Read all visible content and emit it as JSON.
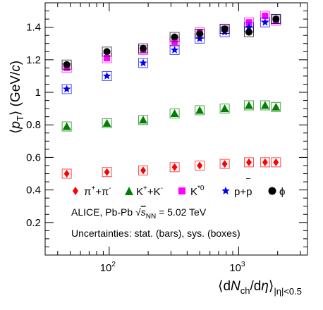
{
  "chart_data": {
    "type": "scatter",
    "ylabel": "⟨pT⟩ (GeV/c)",
    "xlabel": "⟨dNch/dη⟩|η|<0.5",
    "x_scale": "log",
    "xlim": [
      32,
      3400
    ],
    "ylim": [
      0.0,
      1.55
    ],
    "y_ticks": [
      0.2,
      0.4,
      0.6,
      0.8,
      1.0,
      1.2,
      1.4
    ],
    "y_tick_labels": [
      "0.2",
      "0.4",
      "0.6",
      "0.8",
      "1",
      "1.2",
      "1.4"
    ],
    "x_major_ticks": [
      100,
      1000
    ],
    "x_tick_labels": [
      "10",
      "10"
    ],
    "x_tick_exponents": [
      "2",
      "3"
    ],
    "grid": false,
    "legend_position": "inside-bottom",
    "legend": [
      {
        "label": "π⁺+π⁻",
        "series": 0
      },
      {
        "label": "K⁺+K⁻",
        "series": 1
      },
      {
        "label": "K*0",
        "series": 2
      },
      {
        "label": "p+p̄",
        "series": 3
      },
      {
        "label": "ϕ",
        "series": 4
      }
    ],
    "annotations": [
      "ALICE, Pb-Pb √sNN = 5.02 TeV",
      "Uncertainties: stat. (bars), sys. (boxes)"
    ],
    "series": [
      {
        "name": "π⁺+π⁻",
        "color": "#ff0000",
        "marker": "diamond",
        "x": [
          47,
          96,
          183,
          320,
          500,
          780,
          1200,
          1600,
          1940
        ],
        "y": [
          0.5,
          0.51,
          0.52,
          0.54,
          0.55,
          0.56,
          0.57,
          0.57,
          0.57
        ]
      },
      {
        "name": "K⁺+K⁻",
        "color": "#008000",
        "marker": "triangle",
        "x": [
          47,
          96,
          183,
          320,
          500,
          780,
          1200,
          1600,
          1940
        ],
        "y": [
          0.79,
          0.81,
          0.83,
          0.87,
          0.89,
          0.9,
          0.92,
          0.92,
          0.91
        ]
      },
      {
        "name": "K*0",
        "color": "#ff00ff",
        "marker": "square",
        "x": [
          47,
          96,
          183,
          320,
          500,
          780,
          1200,
          1600,
          1940
        ],
        "y": [
          1.15,
          1.21,
          1.26,
          1.31,
          1.37,
          1.39,
          1.43,
          1.47,
          1.44
        ]
      },
      {
        "name": "p+p̄",
        "color": "#0000ff",
        "marker": "star",
        "x": [
          47,
          96,
          183,
          320,
          500,
          780,
          1200,
          1600,
          1940
        ],
        "y": [
          1.02,
          1.1,
          1.18,
          1.26,
          1.33,
          1.37,
          1.4,
          1.43,
          1.45
        ]
      },
      {
        "name": "ϕ",
        "color": "#000000",
        "marker": "circle",
        "x": [
          47,
          96,
          183,
          320,
          500,
          780,
          1200,
          1940
        ],
        "y": [
          1.17,
          1.25,
          1.27,
          1.34,
          1.36,
          1.39,
          1.37,
          1.45
        ]
      }
    ]
  }
}
